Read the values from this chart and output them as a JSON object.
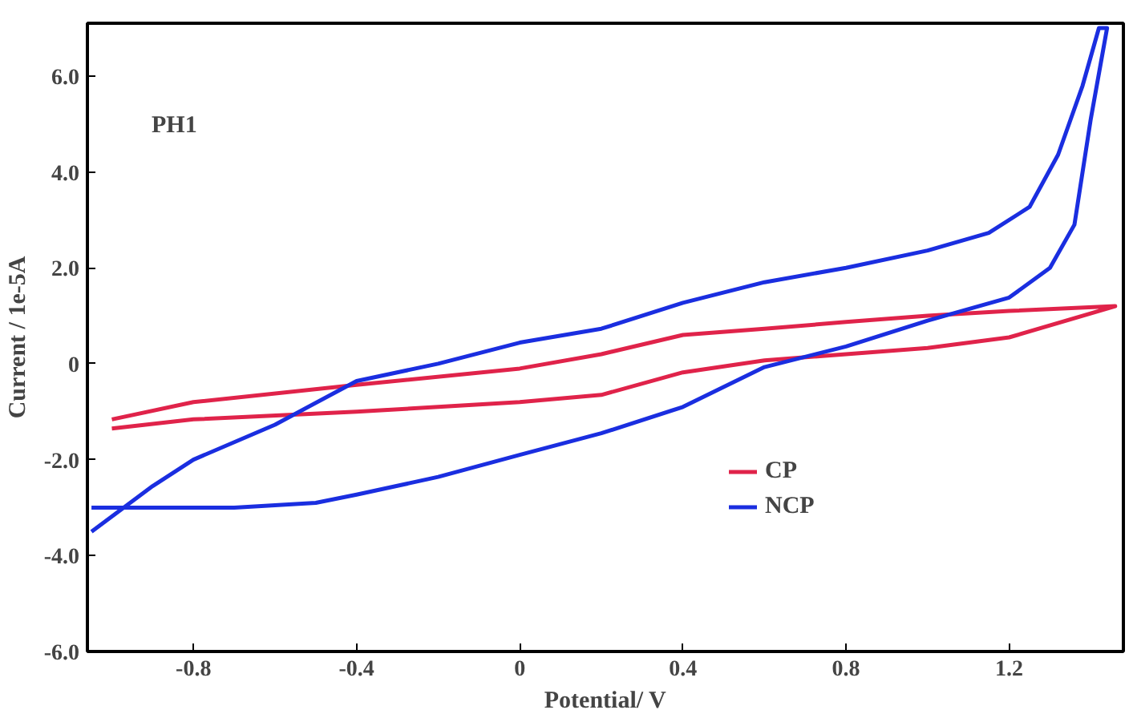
{
  "chart_data": {
    "type": "line",
    "xlabel": "Potential/ V",
    "ylabel": "Current / 1e-5A",
    "annotations": [
      "PH1"
    ],
    "xlim": [
      -1.06,
      1.48
    ],
    "ylim": [
      -6.0,
      7.1
    ],
    "xticks": [
      -0.8,
      -0.4,
      0,
      0.4,
      0.8,
      1.2
    ],
    "yticks": [
      {
        "value": -6,
        "label": "-6.0"
      },
      {
        "value": -4,
        "label": "-4.0"
      },
      {
        "value": -2,
        "label": "-2.0"
      },
      0,
      {
        "value": 2,
        "label": "2.0"
      },
      {
        "value": 4,
        "label": "4.0"
      },
      {
        "value": 6,
        "label": "6.0"
      }
    ],
    "grid": false,
    "legend": "right",
    "marker": "none",
    "line_style": "solid",
    "series": [
      {
        "name": "CP",
        "color": "#e0234a",
        "x": [
          -1.0,
          -0.8,
          -0.4,
          0,
          0.2,
          0.4,
          0.6,
          0.8,
          1.0,
          1.2,
          1.46,
          1.2,
          1.0,
          0.8,
          0.6,
          0.4,
          0.2,
          0,
          -0.4,
          -0.8,
          -1.0
        ],
        "values": [
          -1.16,
          -0.8,
          -0.44,
          -0.1,
          0.2,
          0.6,
          0.73,
          0.87,
          1.0,
          1.1,
          1.2,
          0.55,
          0.33,
          0.2,
          0.07,
          -0.18,
          -0.65,
          -0.8,
          -1.0,
          -1.16,
          -1.35
        ]
      },
      {
        "name": "NCP",
        "color": "#1a2ee0",
        "x": [
          -1.05,
          -0.9,
          -0.8,
          -0.6,
          -0.4,
          -0.2,
          0,
          0.2,
          0.4,
          0.6,
          0.8,
          1.0,
          1.15,
          1.25,
          1.32,
          1.38,
          1.42,
          1.44,
          1.4,
          1.36,
          1.3,
          1.2,
          1.0,
          0.8,
          0.6,
          0.4,
          0.2,
          0,
          -0.2,
          -0.4,
          -0.5,
          -0.7,
          -0.9,
          -1.05
        ],
        "values": [
          -3.5,
          -2.55,
          -2.0,
          -1.27,
          -0.36,
          0,
          0.44,
          0.73,
          1.27,
          1.7,
          2.0,
          2.36,
          2.73,
          3.27,
          4.36,
          5.8,
          7.0,
          7.0,
          5.1,
          2.9,
          2.0,
          1.38,
          0.9,
          0.36,
          -0.07,
          -0.9,
          -1.45,
          -1.9,
          -2.36,
          -2.73,
          -2.9,
          -3.0,
          -3.0,
          -3.0
        ]
      }
    ]
  }
}
